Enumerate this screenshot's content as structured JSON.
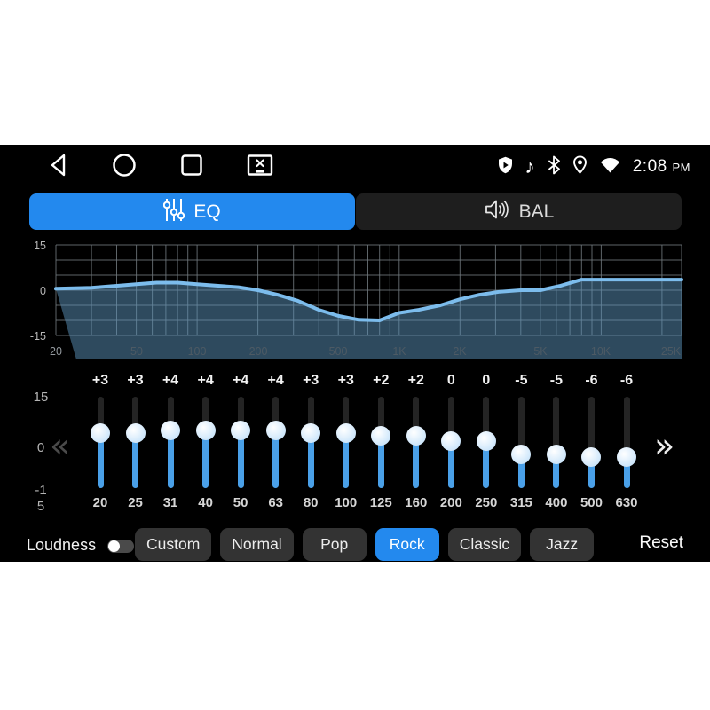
{
  "status_bar": {
    "time": "2:08",
    "time_period": "PM"
  },
  "icons": {
    "music_note": "♪"
  },
  "tabs": [
    {
      "label": "EQ",
      "active": true
    },
    {
      "label": "BAL",
      "active": false
    }
  ],
  "chart_data": {
    "type": "line",
    "x_scale": "log",
    "x_range_hz": [
      20,
      25000
    ],
    "ylim": [
      -15,
      15
    ],
    "grid": true,
    "yticks": [
      {
        "label": "15",
        "db": 15
      },
      {
        "label": "0",
        "db": 0
      },
      {
        "label": "-15",
        "db": -15
      }
    ],
    "xticks": [
      {
        "label": "20",
        "hz": 20
      },
      {
        "label": "50",
        "hz": 50
      },
      {
        "label": "100",
        "hz": 100
      },
      {
        "label": "200",
        "hz": 200
      },
      {
        "label": "500",
        "hz": 500
      },
      {
        "label": "1K",
        "hz": 1000
      },
      {
        "label": "2K",
        "hz": 2000
      },
      {
        "label": "5K",
        "hz": 5000
      },
      {
        "label": "10K",
        "hz": 10000
      },
      {
        "label": "25K",
        "hz": 25000
      }
    ],
    "series": [
      {
        "name": "eq-frequency-response",
        "x_hz": [
          20,
          30,
          50,
          63,
          80,
          100,
          125,
          160,
          200,
          250,
          315,
          400,
          500,
          630,
          800,
          1000,
          1250,
          1600,
          2000,
          2500,
          3150,
          4000,
          5000,
          6300,
          8000,
          10000,
          25000
        ],
        "db": [
          0.5,
          0.8,
          2,
          2.5,
          2.5,
          2,
          1.5,
          1,
          0,
          -1.5,
          -3.5,
          -6.5,
          -8.5,
          -9.8,
          -10,
          -7.5,
          -6.5,
          -5,
          -3,
          -1.5,
          -0.5,
          0,
          0,
          1.5,
          3.5,
          3.5,
          3.5
        ]
      }
    ],
    "line_color": "#7cbcec",
    "fill_color": "rgba(92,148,188,0.5)"
  },
  "equalizer": {
    "gain_axis": {
      "top": "15",
      "mid": "0",
      "bottom": "-1\n5"
    },
    "prev_icon": "«",
    "next_icon": "»",
    "bands": [
      {
        "freq": "20",
        "gain_label": "+3",
        "gain_db": 3
      },
      {
        "freq": "25",
        "gain_label": "+3",
        "gain_db": 3
      },
      {
        "freq": "31",
        "gain_label": "+4",
        "gain_db": 4
      },
      {
        "freq": "40",
        "gain_label": "+4",
        "gain_db": 4
      },
      {
        "freq": "50",
        "gain_label": "+4",
        "gain_db": 4
      },
      {
        "freq": "63",
        "gain_label": "+4",
        "gain_db": 4
      },
      {
        "freq": "80",
        "gain_label": "+3",
        "gain_db": 3
      },
      {
        "freq": "100",
        "gain_label": "+3",
        "gain_db": 3
      },
      {
        "freq": "125",
        "gain_label": "+2",
        "gain_db": 2
      },
      {
        "freq": "160",
        "gain_label": "+2",
        "gain_db": 2
      },
      {
        "freq": "200",
        "gain_label": "0",
        "gain_db": 0
      },
      {
        "freq": "250",
        "gain_label": "0",
        "gain_db": 0
      },
      {
        "freq": "315",
        "gain_label": "-5",
        "gain_db": -5
      },
      {
        "freq": "400",
        "gain_label": "-5",
        "gain_db": -5
      },
      {
        "freq": "500",
        "gain_label": "-6",
        "gain_db": -6
      },
      {
        "freq": "630",
        "gain_label": "-6",
        "gain_db": -6
      }
    ]
  },
  "footer": {
    "loudness_label": "Loudness",
    "loudness_on": false,
    "presets": [
      {
        "label": "Custom",
        "active": false
      },
      {
        "label": "Normal",
        "active": false
      },
      {
        "label": "Pop",
        "active": false
      },
      {
        "label": "Rock",
        "active": true
      },
      {
        "label": "Classic",
        "active": false
      },
      {
        "label": "Jazz",
        "active": false
      }
    ],
    "reset_label": "Reset"
  },
  "colors": {
    "accent_blue": "#2389ee",
    "slider_blue": "#4aa0e8",
    "handle_blue": "#cfe7fb",
    "screen_bg": "#000000",
    "letterbox": "#ffffff"
  }
}
